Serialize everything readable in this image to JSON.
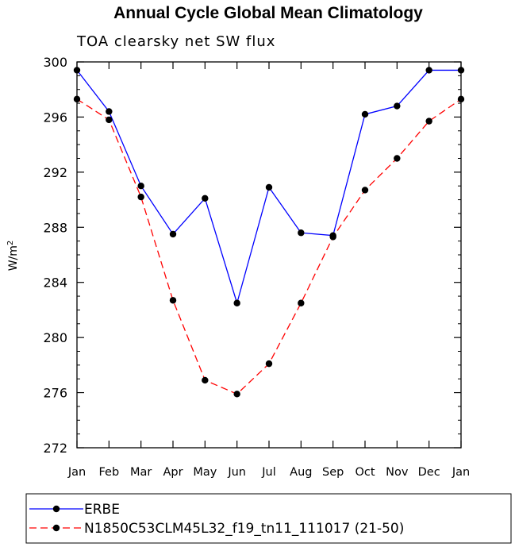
{
  "chart_data": {
    "type": "line",
    "title": "Annual Cycle Global Mean Climatology",
    "subtitle": "TOA clearsky net SW flux",
    "ylabel_base": "W/m",
    "ylabel_sup": "2",
    "xlabel": "",
    "categories": [
      "Jan",
      "Feb",
      "Mar",
      "Apr",
      "May",
      "Jun",
      "Jul",
      "Aug",
      "Sep",
      "Oct",
      "Nov",
      "Dec",
      "Jan"
    ],
    "ylim": [
      272,
      300
    ],
    "yticks": [
      272,
      276,
      280,
      284,
      288,
      292,
      296,
      300
    ],
    "series": [
      {
        "name": "ERBE",
        "color": "#0000ff",
        "dash": "solid",
        "values": [
          299.4,
          296.4,
          291.0,
          287.5,
          290.1,
          282.5,
          290.9,
          287.6,
          287.4,
          296.2,
          296.8,
          299.4,
          299.4
        ]
      },
      {
        "name": "N1850C53CLM45L32_f19_tn11_111017 (21-50)",
        "color": "#ff0000",
        "dash": "dashed",
        "values": [
          297.3,
          295.8,
          290.2,
          282.7,
          276.9,
          275.9,
          278.1,
          282.5,
          287.3,
          290.7,
          293.0,
          295.7,
          297.3
        ]
      }
    ]
  }
}
